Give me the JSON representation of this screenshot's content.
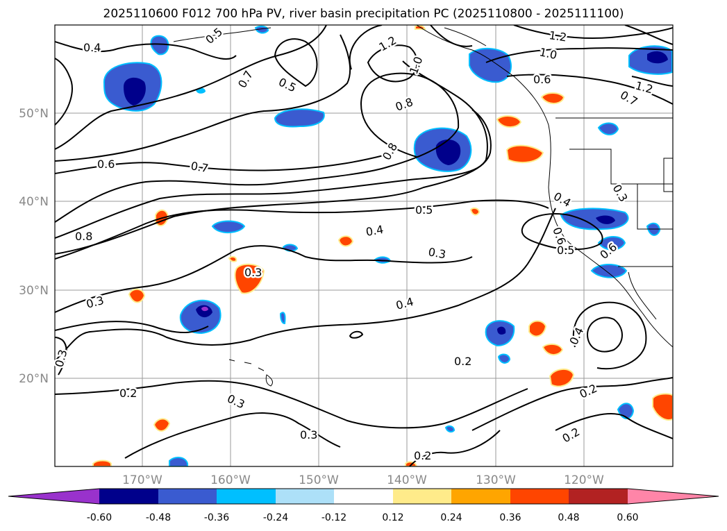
{
  "title": "2025110600 F012 700 hPa PV, river basin precipitation PC (2025110800 - 2025111100)",
  "axes": {
    "lat_labels": [
      "50°N",
      "40°N",
      "30°N",
      "20°N"
    ],
    "lon_labels": [
      "170°W",
      "160°W",
      "150°W",
      "140°W",
      "130°W",
      "120°W"
    ]
  },
  "contour_labels": [
    {
      "text": "0.4",
      "name": "contour-label-0-4-a"
    },
    {
      "text": "0.5",
      "name": "contour-label-0-5-a"
    },
    {
      "text": "0.7",
      "name": "contour-label-0-7-a"
    },
    {
      "text": "0.5",
      "name": "contour-label-0-5-b"
    },
    {
      "text": "1.2",
      "name": "contour-label-1-2-a"
    },
    {
      "text": "1.0",
      "name": "contour-label-1-0-a"
    },
    {
      "text": "0.8",
      "name": "contour-label-0-8-a"
    },
    {
      "text": "1.2",
      "name": "contour-label-1-2-b"
    },
    {
      "text": "1.0",
      "name": "contour-label-1-0-b"
    },
    {
      "text": "0.6",
      "name": "contour-label-0-6-a"
    },
    {
      "text": "1.2",
      "name": "contour-label-1-2-c"
    },
    {
      "text": "0.7",
      "name": "contour-label-0-7-b"
    },
    {
      "text": "0.8",
      "name": "contour-label-0-8-b"
    },
    {
      "text": "0.6",
      "name": "contour-label-0-6-b"
    },
    {
      "text": "0.7",
      "name": "contour-label-0-7-c"
    },
    {
      "text": "0.5",
      "name": "contour-label-0-5-c"
    },
    {
      "text": "0.4",
      "name": "contour-label-0-4-b"
    },
    {
      "text": "0.3",
      "name": "contour-label-0-3-a"
    },
    {
      "text": "0.8",
      "name": "contour-label-0-8-c"
    },
    {
      "text": "0.3",
      "name": "contour-label-0-3-b"
    },
    {
      "text": "0.3",
      "name": "contour-label-0-3-c"
    },
    {
      "text": "0.4",
      "name": "contour-label-0-4-c"
    },
    {
      "text": "0.3",
      "name": "contour-label-0-3-d"
    },
    {
      "text": "0.2",
      "name": "contour-label-0-2-a"
    },
    {
      "text": "0.2",
      "name": "contour-label-0-2-b"
    },
    {
      "text": "0.3",
      "name": "contour-label-0-3-e"
    },
    {
      "text": "0.3",
      "name": "contour-label-0-3-f"
    },
    {
      "text": "0.2",
      "name": "contour-label-0-2-c"
    },
    {
      "text": "0.4",
      "name": "contour-label-0-4-d"
    },
    {
      "text": "0.2",
      "name": "contour-label-0-2-d"
    },
    {
      "text": "0.2",
      "name": "contour-label-0-2-e"
    },
    {
      "text": "0.4",
      "name": "contour-label-0-4-e"
    },
    {
      "text": "0.6",
      "name": "contour-label-0-6-c"
    },
    {
      "text": "0.5",
      "name": "contour-label-0-5-d"
    },
    {
      "text": "0.6",
      "name": "contour-label-0-6-d"
    },
    {
      "text": "0.3",
      "name": "contour-label-0-3-g"
    }
  ],
  "colorbar": {
    "colors": [
      "#9932CC",
      "#00008B",
      "#3A5BD0",
      "#00BFFF",
      "#ADE0F8",
      "#FFFFFF",
      "#FFEB8A",
      "#FFA500",
      "#FF4500",
      "#B22222",
      "#FF85A8"
    ],
    "tick_labels": [
      "-0.60",
      "-0.48",
      "-0.36",
      "-0.24",
      "-0.12",
      "0.12",
      "0.24",
      "0.36",
      "0.48",
      "0.60"
    ]
  },
  "precip_colors": {
    "dark_blue": "#00008B",
    "blue": "#3A5BD0",
    "sky": "#00BFFF",
    "light_blue": "#ADE0F8",
    "yellow": "#FFEB8A",
    "orange": "#FFA500",
    "red_orange": "#FF4500",
    "purple": "#9932CC"
  }
}
